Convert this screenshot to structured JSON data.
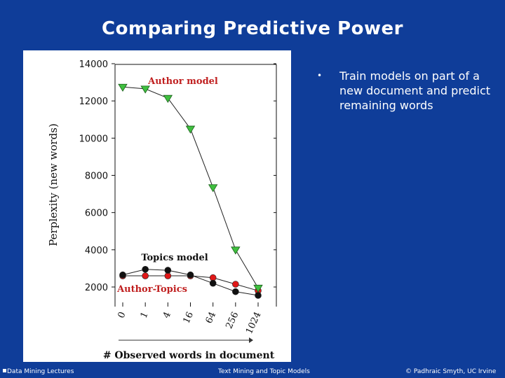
{
  "slide": {
    "title": "Comparing Predictive Power",
    "bullets": [
      "Train models on part of a new document and predict remaining words"
    ],
    "footer_left": "Data Mining Lectures",
    "footer_center": "Text Mining and Topic Models",
    "footer_right": "© Padhraic Smyth, UC Irvine",
    "background_color": "#0f3d99"
  },
  "chart_data": {
    "type": "line",
    "title": "",
    "xlabel": "# Observed words in document",
    "ylabel": "Perplexity (new words)",
    "categories": [
      "0",
      "1",
      "4",
      "16",
      "64",
      "256",
      "1024"
    ],
    "ylim": [
      1500,
      14000
    ],
    "yticks": [
      2000,
      4000,
      6000,
      8000,
      10000,
      12000,
      14000
    ],
    "grid": false,
    "series": [
      {
        "name": "Author model",
        "marker": "triangle-down",
        "color": "#3fbf3f",
        "label_color": "#c02020",
        "values": [
          12750,
          12650,
          12150,
          10500,
          7350,
          4000,
          1950
        ]
      },
      {
        "name": "Topics model",
        "marker": "circle",
        "color": "#111111",
        "label_color": "#111111",
        "values": [
          2650,
          2950,
          2900,
          2650,
          2200,
          1750,
          1550
        ]
      },
      {
        "name": "Author-Topics",
        "marker": "circle",
        "color": "#e01818",
        "label_color": "#c02020",
        "values": [
          2600,
          2600,
          2600,
          2600,
          2500,
          2150,
          1800
        ]
      }
    ]
  }
}
